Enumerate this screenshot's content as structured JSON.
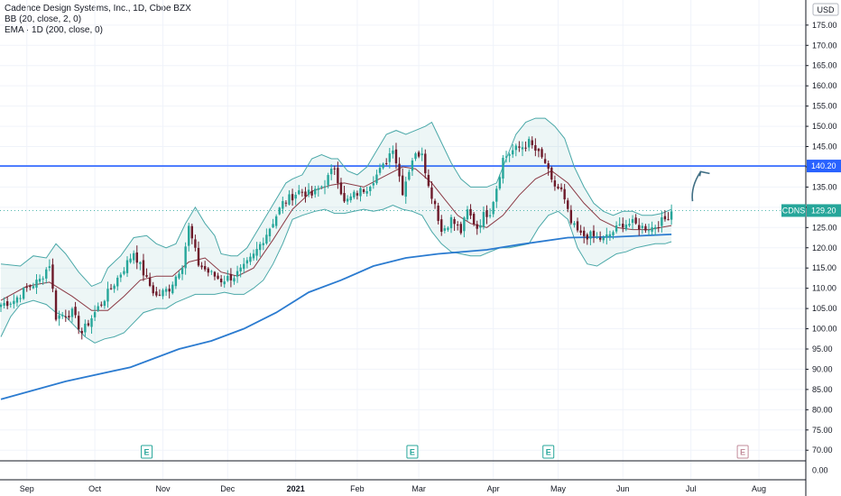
{
  "legend": {
    "title": "Cadence Design Systems, Inc., 1D, Cboe BZX",
    "bb": "BB (20, close, 2, 0)",
    "ema": "EMA · 1D (200, close, 0)"
  },
  "currency": "USD",
  "colors": {
    "up": "#26a69a",
    "down": "#6d1a2a",
    "ema": "#2b7bd0",
    "bb_band": "#4aa8a8",
    "bb_basis": "#8b3a45",
    "hline": "#2962ff",
    "arrow": "#3f6e84",
    "earnings": "#26a69a"
  },
  "chart_data": {
    "type": "candlestick",
    "symbol": "CDNS",
    "last_price": "129.20",
    "horizontal_line": {
      "value": 140.2,
      "label": "140.20"
    },
    "ylim": [
      67.6,
      181.2
    ],
    "y_ticks": [
      "175.00",
      "170.00",
      "165.00",
      "160.00",
      "155.00",
      "150.00",
      "145.00",
      "140.00",
      "135.00",
      "130.00",
      "125.00",
      "120.00",
      "115.00",
      "110.00",
      "105.00",
      "100.00",
      "95.00",
      "90.00",
      "85.00",
      "80.00",
      "75.00",
      "70.00"
    ],
    "subpane_tick": "0.00",
    "x_labels": [
      {
        "label": "Sep",
        "i": 8
      },
      {
        "label": "Oct",
        "i": 29
      },
      {
        "label": "Nov",
        "i": 50
      },
      {
        "label": "Dec",
        "i": 70
      },
      {
        "label": "2021",
        "i": 91
      },
      {
        "label": "Feb",
        "i": 110
      },
      {
        "label": "Mar",
        "i": 129
      },
      {
        "label": "Apr",
        "i": 152
      },
      {
        "label": "May",
        "i": 172
      },
      {
        "label": "Jun",
        "i": 192
      },
      {
        "label": "Jul",
        "i": 213
      },
      {
        "label": "Aug",
        "i": 234
      }
    ],
    "earnings": [
      {
        "i": 45,
        "label": "E",
        "future": false
      },
      {
        "i": 127,
        "label": "E",
        "future": false
      },
      {
        "i": 169,
        "label": "E",
        "future": false
      },
      {
        "i": 229,
        "label": "E",
        "future": true
      }
    ],
    "anchors": [
      {
        "i": 0,
        "c": 106
      },
      {
        "i": 4,
        "c": 107
      },
      {
        "i": 8,
        "c": 110
      },
      {
        "i": 12,
        "c": 112
      },
      {
        "i": 15,
        "c": 116
      },
      {
        "i": 17,
        "c": 103
      },
      {
        "i": 22,
        "c": 104
      },
      {
        "i": 25,
        "c": 99
      },
      {
        "i": 29,
        "c": 104
      },
      {
        "i": 34,
        "c": 110
      },
      {
        "i": 38,
        "c": 115
      },
      {
        "i": 41,
        "c": 119
      },
      {
        "i": 45,
        "c": 112
      },
      {
        "i": 48,
        "c": 108
      },
      {
        "i": 52,
        "c": 110
      },
      {
        "i": 56,
        "c": 116
      },
      {
        "i": 58,
        "c": 125
      },
      {
        "i": 61,
        "c": 116
      },
      {
        "i": 64,
        "c": 114
      },
      {
        "i": 68,
        "c": 112
      },
      {
        "i": 72,
        "c": 113
      },
      {
        "i": 75,
        "c": 115
      },
      {
        "i": 78,
        "c": 118
      },
      {
        "i": 83,
        "c": 125
      },
      {
        "i": 87,
        "c": 131
      },
      {
        "i": 92,
        "c": 134
      },
      {
        "i": 96,
        "c": 133
      },
      {
        "i": 100,
        "c": 136
      },
      {
        "i": 103,
        "c": 140
      },
      {
        "i": 106,
        "c": 131
      },
      {
        "i": 109,
        "c": 133
      },
      {
        "i": 113,
        "c": 135
      },
      {
        "i": 118,
        "c": 140
      },
      {
        "i": 121,
        "c": 145
      },
      {
        "i": 124,
        "c": 134
      },
      {
        "i": 127,
        "c": 142
      },
      {
        "i": 130,
        "c": 144
      },
      {
        "i": 132,
        "c": 135
      },
      {
        "i": 134,
        "c": 131
      },
      {
        "i": 136,
        "c": 124
      },
      {
        "i": 139,
        "c": 127
      },
      {
        "i": 142,
        "c": 124
      },
      {
        "i": 144,
        "c": 129
      },
      {
        "i": 147,
        "c": 125
      },
      {
        "i": 149,
        "c": 128
      },
      {
        "i": 151,
        "c": 129
      },
      {
        "i": 153,
        "c": 135
      },
      {
        "i": 155,
        "c": 142
      },
      {
        "i": 158,
        "c": 144
      },
      {
        "i": 161,
        "c": 145
      },
      {
        "i": 163,
        "c": 146
      },
      {
        "i": 166,
        "c": 143
      },
      {
        "i": 168,
        "c": 141
      },
      {
        "i": 170,
        "c": 136
      },
      {
        "i": 173,
        "c": 134
      },
      {
        "i": 176,
        "c": 126
      },
      {
        "i": 179,
        "c": 123
      },
      {
        "i": 182,
        "c": 123
      },
      {
        "i": 186,
        "c": 122
      },
      {
        "i": 189,
        "c": 124
      },
      {
        "i": 192,
        "c": 126
      },
      {
        "i": 195,
        "c": 126
      },
      {
        "i": 198,
        "c": 125
      },
      {
        "i": 201,
        "c": 125
      },
      {
        "i": 205,
        "c": 127
      },
      {
        "i": 207,
        "c": 129
      }
    ],
    "ema_points": [
      [
        0,
        82.6
      ],
      [
        20,
        87
      ],
      [
        40,
        90.5
      ],
      [
        55,
        95
      ],
      [
        65,
        97
      ],
      [
        75,
        100
      ],
      [
        85,
        104
      ],
      [
        95,
        109
      ],
      [
        105,
        112
      ],
      [
        115,
        115.5
      ],
      [
        125,
        117.5
      ],
      [
        135,
        118.5
      ],
      [
        150,
        119.5
      ],
      [
        160,
        120.8
      ],
      [
        175,
        122.5
      ],
      [
        190,
        122.7
      ],
      [
        207,
        123.3
      ]
    ],
    "bb_upper": [
      [
        0,
        116
      ],
      [
        6,
        115.5
      ],
      [
        10,
        118
      ],
      [
        14,
        117.5
      ],
      [
        17,
        121
      ],
      [
        20,
        118.5
      ],
      [
        24,
        114
      ],
      [
        28,
        110.5
      ],
      [
        31,
        111.5
      ],
      [
        33,
        115
      ],
      [
        37,
        118
      ],
      [
        41,
        122.5
      ],
      [
        45,
        123
      ],
      [
        48,
        121
      ],
      [
        51,
        120
      ],
      [
        54,
        121
      ],
      [
        57,
        126
      ],
      [
        60,
        130
      ],
      [
        63,
        126
      ],
      [
        66,
        123
      ],
      [
        68,
        118.5
      ],
      [
        71,
        118
      ],
      [
        73,
        118
      ],
      [
        76,
        120
      ],
      [
        79,
        124
      ],
      [
        82,
        128
      ],
      [
        85,
        132
      ],
      [
        88,
        136
      ],
      [
        90,
        137
      ],
      [
        93,
        138
      ],
      [
        96,
        142
      ],
      [
        99,
        143
      ],
      [
        102,
        142
      ],
      [
        104,
        142
      ],
      [
        107,
        139
      ],
      [
        110,
        138
      ],
      [
        113,
        140
      ],
      [
        116,
        144
      ],
      [
        119,
        148
      ],
      [
        122,
        149
      ],
      [
        125,
        148
      ],
      [
        128,
        149
      ],
      [
        131,
        150
      ],
      [
        133,
        151
      ],
      [
        136,
        146
      ],
      [
        139,
        141
      ],
      [
        142,
        137
      ],
      [
        145,
        135
      ],
      [
        147,
        135
      ],
      [
        150,
        135
      ],
      [
        153,
        136
      ],
      [
        156,
        142
      ],
      [
        159,
        148
      ],
      [
        162,
        151
      ],
      [
        165,
        152
      ],
      [
        168,
        152
      ],
      [
        171,
        150
      ],
      [
        174,
        147
      ],
      [
        177,
        140
      ],
      [
        180,
        135
      ],
      [
        183,
        131
      ],
      [
        186,
        129
      ],
      [
        189,
        128
      ],
      [
        192,
        129
      ],
      [
        195,
        129
      ],
      [
        198,
        128
      ],
      [
        201,
        128
      ],
      [
        204,
        128.5
      ],
      [
        207,
        129.5
      ]
    ],
    "bb_lower": [
      [
        0,
        98
      ],
      [
        3,
        103
      ],
      [
        6,
        106
      ],
      [
        10,
        107
      ],
      [
        14,
        106
      ],
      [
        17,
        104
      ],
      [
        20,
        103
      ],
      [
        23,
        100.5
      ],
      [
        26,
        98
      ],
      [
        29,
        96.5
      ],
      [
        32,
        97.5
      ],
      [
        35,
        98
      ],
      [
        38,
        99
      ],
      [
        41,
        101.5
      ],
      [
        44,
        104
      ],
      [
        48,
        105
      ],
      [
        51,
        105
      ],
      [
        54,
        106.5
      ],
      [
        57,
        107.5
      ],
      [
        60,
        108.5
      ],
      [
        63,
        108.5
      ],
      [
        66,
        108.5
      ],
      [
        69,
        109
      ],
      [
        72,
        108.5
      ],
      [
        75,
        108.5
      ],
      [
        78,
        110
      ],
      [
        81,
        112
      ],
      [
        84,
        116
      ],
      [
        87,
        121
      ],
      [
        90,
        127
      ],
      [
        93,
        128
      ],
      [
        97,
        129
      ],
      [
        100,
        129.5
      ],
      [
        103,
        128.5
      ],
      [
        106,
        128.5
      ],
      [
        109,
        129
      ],
      [
        112,
        129.5
      ],
      [
        115,
        129
      ],
      [
        118,
        129.5
      ],
      [
        121,
        130.5
      ],
      [
        124,
        129.5
      ],
      [
        127,
        129
      ],
      [
        130,
        128
      ],
      [
        133,
        124
      ],
      [
        136,
        121
      ],
      [
        139,
        119
      ],
      [
        142,
        118.5
      ],
      [
        145,
        118
      ],
      [
        148,
        118
      ],
      [
        151,
        119
      ],
      [
        154,
        120
      ],
      [
        157,
        120
      ],
      [
        160,
        120.5
      ],
      [
        163,
        121
      ],
      [
        166,
        125
      ],
      [
        169,
        128
      ],
      [
        172,
        129
      ],
      [
        175,
        127
      ],
      [
        178,
        120
      ],
      [
        181,
        116
      ],
      [
        184,
        115.5
      ],
      [
        187,
        117
      ],
      [
        190,
        118.5
      ],
      [
        193,
        119
      ],
      [
        196,
        120
      ],
      [
        199,
        120.5
      ],
      [
        202,
        121
      ],
      [
        205,
        121
      ],
      [
        207,
        121.5
      ]
    ],
    "bb_basis": [
      [
        0,
        107
      ],
      [
        8,
        110.5
      ],
      [
        15,
        111.5
      ],
      [
        22,
        108
      ],
      [
        28,
        104.5
      ],
      [
        33,
        104.5
      ],
      [
        38,
        108
      ],
      [
        43,
        112
      ],
      [
        48,
        113
      ],
      [
        53,
        113
      ],
      [
        58,
        116.5
      ],
      [
        63,
        117.5
      ],
      [
        68,
        114
      ],
      [
        73,
        113
      ],
      [
        78,
        115
      ],
      [
        84,
        122
      ],
      [
        90,
        129.5
      ],
      [
        96,
        134
      ],
      [
        102,
        135.5
      ],
      [
        106,
        136
      ],
      [
        112,
        135
      ],
      [
        118,
        137.5
      ],
      [
        124,
        140
      ],
      [
        128,
        139.5
      ],
      [
        133,
        136
      ],
      [
        137,
        132
      ],
      [
        141,
        128
      ],
      [
        145,
        126
      ],
      [
        150,
        125
      ],
      [
        155,
        128
      ],
      [
        160,
        133
      ],
      [
        165,
        137
      ],
      [
        170,
        139
      ],
      [
        175,
        136
      ],
      [
        180,
        131
      ],
      [
        185,
        127
      ],
      [
        190,
        125
      ],
      [
        195,
        124.5
      ],
      [
        200,
        124.5
      ],
      [
        207,
        125.5
      ]
    ],
    "arrow": {
      "from_i": 213.5,
      "from_v": 131.5,
      "to_i": 216,
      "to_v": 138.8
    }
  }
}
